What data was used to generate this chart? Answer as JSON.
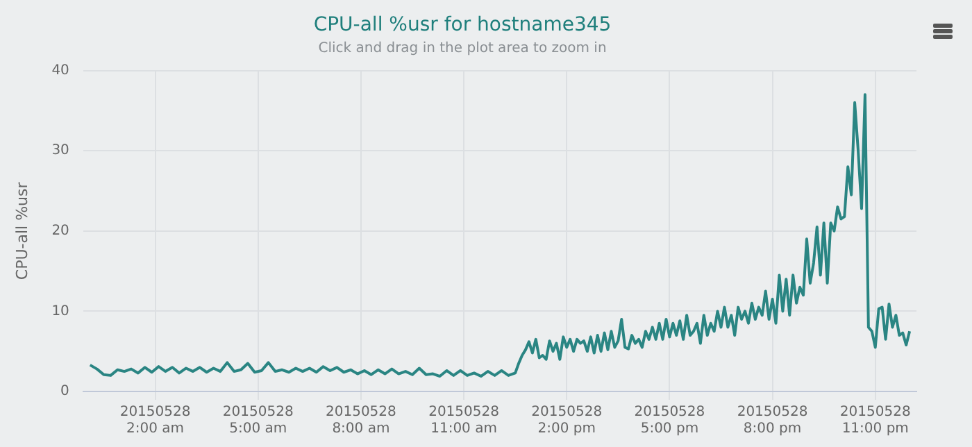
{
  "chart_data": {
    "type": "line",
    "title": "CPU-all %usr for hostname345",
    "subtitle": "Click and drag in the plot area to zoom in",
    "ylabel": "CPU-all %usr",
    "x": [
      "2015-05-28T00:06",
      "2015-05-28T00:18",
      "2015-05-28T00:30",
      "2015-05-28T00:42",
      "2015-05-28T00:54",
      "2015-05-28T01:06",
      "2015-05-28T01:18",
      "2015-05-28T01:30",
      "2015-05-28T01:42",
      "2015-05-28T01:54",
      "2015-05-28T02:06",
      "2015-05-28T02:18",
      "2015-05-28T02:30",
      "2015-05-28T02:42",
      "2015-05-28T02:54",
      "2015-05-28T03:06",
      "2015-05-28T03:18",
      "2015-05-28T03:30",
      "2015-05-28T03:42",
      "2015-05-28T03:54",
      "2015-05-28T04:06",
      "2015-05-28T04:18",
      "2015-05-28T04:30",
      "2015-05-28T04:42",
      "2015-05-28T04:54",
      "2015-05-28T05:06",
      "2015-05-28T05:18",
      "2015-05-28T05:30",
      "2015-05-28T05:42",
      "2015-05-28T05:54",
      "2015-05-28T06:06",
      "2015-05-28T06:18",
      "2015-05-28T06:30",
      "2015-05-28T06:42",
      "2015-05-28T06:54",
      "2015-05-28T07:06",
      "2015-05-28T07:18",
      "2015-05-28T07:30",
      "2015-05-28T07:42",
      "2015-05-28T07:54",
      "2015-05-28T08:06",
      "2015-05-28T08:18",
      "2015-05-28T08:30",
      "2015-05-28T08:42",
      "2015-05-28T08:54",
      "2015-05-28T09:06",
      "2015-05-28T09:18",
      "2015-05-28T09:30",
      "2015-05-28T09:42",
      "2015-05-28T09:54",
      "2015-05-28T10:06",
      "2015-05-28T10:18",
      "2015-05-28T10:30",
      "2015-05-28T10:42",
      "2015-05-28T10:54",
      "2015-05-28T11:06",
      "2015-05-28T11:18",
      "2015-05-28T11:30",
      "2015-05-28T11:42",
      "2015-05-28T11:54",
      "2015-05-28T12:06",
      "2015-05-28T12:18",
      "2015-05-28T12:30",
      "2015-05-28T12:36",
      "2015-05-28T12:42",
      "2015-05-28T12:48",
      "2015-05-28T12:54",
      "2015-05-28T13:00",
      "2015-05-28T13:06",
      "2015-05-28T13:12",
      "2015-05-28T13:18",
      "2015-05-28T13:24",
      "2015-05-28T13:30",
      "2015-05-28T13:36",
      "2015-05-28T13:42",
      "2015-05-28T13:48",
      "2015-05-28T13:54",
      "2015-05-28T14:00",
      "2015-05-28T14:06",
      "2015-05-28T14:12",
      "2015-05-28T14:18",
      "2015-05-28T14:24",
      "2015-05-28T14:30",
      "2015-05-28T14:36",
      "2015-05-28T14:42",
      "2015-05-28T14:48",
      "2015-05-28T14:54",
      "2015-05-28T15:00",
      "2015-05-28T15:06",
      "2015-05-28T15:12",
      "2015-05-28T15:18",
      "2015-05-28T15:24",
      "2015-05-28T15:30",
      "2015-05-28T15:36",
      "2015-05-28T15:42",
      "2015-05-28T15:48",
      "2015-05-28T15:54",
      "2015-05-28T16:00",
      "2015-05-28T16:06",
      "2015-05-28T16:12",
      "2015-05-28T16:18",
      "2015-05-28T16:24",
      "2015-05-28T16:30",
      "2015-05-28T16:36",
      "2015-05-28T16:42",
      "2015-05-28T16:48",
      "2015-05-28T16:54",
      "2015-05-28T17:00",
      "2015-05-28T17:06",
      "2015-05-28T17:12",
      "2015-05-28T17:18",
      "2015-05-28T17:24",
      "2015-05-28T17:30",
      "2015-05-28T17:36",
      "2015-05-28T17:42",
      "2015-05-28T17:48",
      "2015-05-28T17:54",
      "2015-05-28T18:00",
      "2015-05-28T18:06",
      "2015-05-28T18:12",
      "2015-05-28T18:18",
      "2015-05-28T18:24",
      "2015-05-28T18:30",
      "2015-05-28T18:36",
      "2015-05-28T18:42",
      "2015-05-28T18:48",
      "2015-05-28T18:54",
      "2015-05-28T19:00",
      "2015-05-28T19:06",
      "2015-05-28T19:12",
      "2015-05-28T19:18",
      "2015-05-28T19:24",
      "2015-05-28T19:30",
      "2015-05-28T19:36",
      "2015-05-28T19:42",
      "2015-05-28T19:48",
      "2015-05-28T19:54",
      "2015-05-28T20:00",
      "2015-05-28T20:06",
      "2015-05-28T20:12",
      "2015-05-28T20:18",
      "2015-05-28T20:24",
      "2015-05-28T20:30",
      "2015-05-28T20:36",
      "2015-05-28T20:42",
      "2015-05-28T20:48",
      "2015-05-28T20:54",
      "2015-05-28T21:00",
      "2015-05-28T21:06",
      "2015-05-28T21:12",
      "2015-05-28T21:18",
      "2015-05-28T21:24",
      "2015-05-28T21:30",
      "2015-05-28T21:36",
      "2015-05-28T21:42",
      "2015-05-28T21:48",
      "2015-05-28T21:54",
      "2015-05-28T22:00",
      "2015-05-28T22:06",
      "2015-05-28T22:12",
      "2015-05-28T22:18",
      "2015-05-28T22:24",
      "2015-05-28T22:30",
      "2015-05-28T22:36",
      "2015-05-28T22:42",
      "2015-05-28T22:48",
      "2015-05-28T22:54",
      "2015-05-28T23:00",
      "2015-05-28T23:06",
      "2015-05-28T23:12",
      "2015-05-28T23:18",
      "2015-05-28T23:24",
      "2015-05-28T23:30",
      "2015-05-28T23:36",
      "2015-05-28T23:42",
      "2015-05-28T23:48",
      "2015-05-28T23:54",
      "2015-05-29T00:00"
    ],
    "series": [
      {
        "color": "#2a8583",
        "values": [
          3.3,
          2.8,
          2.1,
          2.0,
          2.7,
          2.5,
          2.8,
          2.3,
          3.0,
          2.4,
          3.1,
          2.5,
          3.0,
          2.3,
          2.9,
          2.5,
          3.0,
          2.4,
          2.9,
          2.5,
          3.6,
          2.5,
          2.7,
          3.5,
          2.4,
          2.6,
          3.6,
          2.5,
          2.7,
          2.4,
          2.9,
          2.5,
          2.9,
          2.4,
          3.1,
          2.6,
          3.0,
          2.4,
          2.7,
          2.2,
          2.6,
          2.1,
          2.7,
          2.2,
          2.8,
          2.2,
          2.5,
          2.1,
          2.9,
          2.1,
          2.2,
          1.9,
          2.6,
          2.0,
          2.6,
          2.0,
          2.3,
          1.9,
          2.5,
          2.0,
          2.6,
          2.0,
          2.3,
          3.5,
          4.5,
          5.2,
          6.2,
          4.8,
          6.5,
          4.2,
          4.5,
          4.0,
          6.3,
          5.0,
          6.0,
          4.0,
          6.8,
          5.5,
          6.5,
          5.0,
          6.5,
          6.0,
          6.3,
          5.0,
          6.8,
          4.8,
          7.0,
          5.0,
          7.3,
          5.2,
          7.5,
          5.5,
          6.3,
          9.0,
          5.5,
          5.3,
          7.0,
          6.0,
          6.5,
          5.5,
          7.5,
          6.5,
          8.0,
          6.5,
          8.5,
          6.5,
          9.0,
          6.8,
          8.5,
          7.0,
          8.8,
          6.5,
          9.5,
          7.0,
          7.5,
          8.5,
          6.0,
          9.5,
          7.0,
          8.5,
          7.5,
          10.0,
          8.0,
          10.5,
          8.0,
          9.5,
          7.0,
          10.5,
          9.0,
          10.0,
          8.5,
          11.0,
          9.0,
          10.5,
          9.5,
          12.5,
          9.0,
          11.5,
          8.5,
          14.5,
          10.0,
          14.0,
          9.5,
          14.5,
          11.0,
          13.0,
          12.0,
          19.0,
          13.5,
          16.0,
          20.5,
          14.5,
          21.0,
          13.5,
          21.0,
          20.0,
          23.0,
          21.5,
          21.8,
          28.0,
          24.5,
          36.0,
          30.0,
          22.8,
          37.0,
          8.0,
          7.5,
          5.5,
          10.3,
          10.5,
          6.5,
          10.9,
          8.0,
          9.5,
          7.0,
          7.3,
          5.8,
          7.5
        ]
      }
    ],
    "xlim": [
      "2015-05-27T23:54",
      "2015-05-29T00:12"
    ],
    "xticks": [
      {
        "value": "2015-05-28T02:00",
        "label": "20150528\n2:00 am"
      },
      {
        "value": "2015-05-28T05:00",
        "label": "20150528\n5:00 am"
      },
      {
        "value": "2015-05-28T08:00",
        "label": "20150528\n8:00 am"
      },
      {
        "value": "2015-05-28T11:00",
        "label": "20150528\n11:00 am"
      },
      {
        "value": "2015-05-28T14:00",
        "label": "20150528\n2:00 pm"
      },
      {
        "value": "2015-05-28T17:00",
        "label": "20150528\n5:00 pm"
      },
      {
        "value": "2015-05-28T20:00",
        "label": "20150528\n8:00 pm"
      },
      {
        "value": "2015-05-28T23:00",
        "label": "20150528\n11:00 pm"
      }
    ],
    "ylim": [
      0,
      40
    ],
    "yticks": [
      0,
      10,
      20,
      30,
      40
    ],
    "grid": true,
    "legend": false,
    "marker": "none",
    "line_style": "solid"
  }
}
